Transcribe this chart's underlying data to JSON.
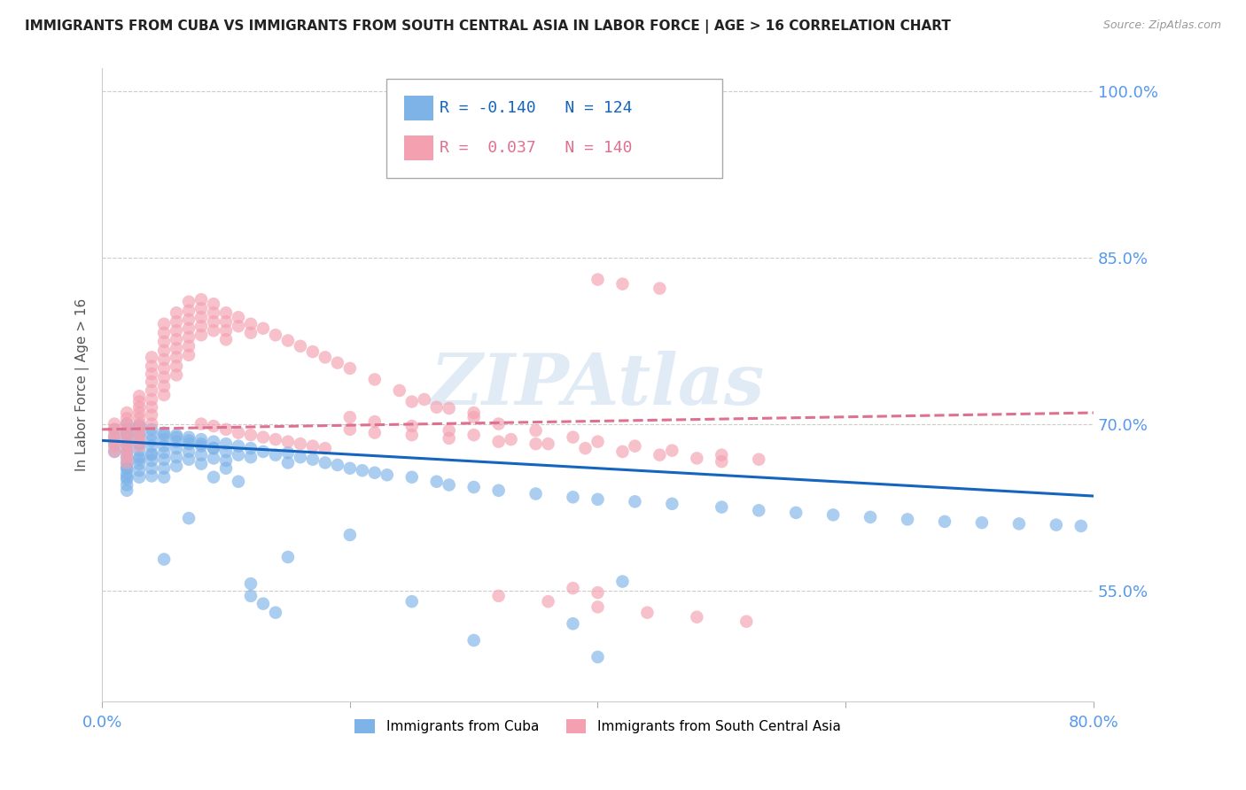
{
  "title": "IMMIGRANTS FROM CUBA VS IMMIGRANTS FROM SOUTH CENTRAL ASIA IN LABOR FORCE | AGE > 16 CORRELATION CHART",
  "source": "Source: ZipAtlas.com",
  "ylabel": "In Labor Force | Age > 16",
  "x_min": 0.0,
  "x_max": 0.8,
  "y_min": 0.45,
  "y_max": 1.02,
  "y_ticks": [
    0.55,
    0.7,
    0.85,
    1.0
  ],
  "y_tick_labels": [
    "55.0%",
    "70.0%",
    "85.0%",
    "100.0%"
  ],
  "x_ticks": [
    0.0,
    0.2,
    0.4,
    0.6,
    0.8
  ],
  "x_tick_labels": [
    "0.0%",
    "",
    "",
    "",
    "80.0%"
  ],
  "cuba_R": -0.14,
  "cuba_N": 124,
  "sca_R": 0.037,
  "sca_N": 140,
  "cuba_color": "#7EB3E8",
  "sca_color": "#F4A0B0",
  "cuba_line_color": "#1565C0",
  "sca_line_color": "#E07090",
  "watermark": "ZIPAtlas",
  "background_color": "#FFFFFF",
  "grid_color": "#CCCCCC",
  "axis_label_color": "#555555",
  "right_tick_color": "#5599EE",
  "cuba_line_start": 0.685,
  "cuba_line_end": 0.635,
  "sca_line_start": 0.695,
  "sca_line_end": 0.71,
  "cuba_scatter_x": [
    0.01,
    0.01,
    0.01,
    0.01,
    0.02,
    0.02,
    0.02,
    0.02,
    0.02,
    0.02,
    0.02,
    0.02,
    0.02,
    0.02,
    0.02,
    0.02,
    0.02,
    0.03,
    0.03,
    0.03,
    0.03,
    0.03,
    0.03,
    0.03,
    0.03,
    0.03,
    0.04,
    0.04,
    0.04,
    0.04,
    0.04,
    0.04,
    0.04,
    0.04,
    0.05,
    0.05,
    0.05,
    0.05,
    0.05,
    0.05,
    0.05,
    0.06,
    0.06,
    0.06,
    0.06,
    0.06,
    0.07,
    0.07,
    0.07,
    0.07,
    0.08,
    0.08,
    0.08,
    0.08,
    0.09,
    0.09,
    0.09,
    0.1,
    0.1,
    0.1,
    0.11,
    0.11,
    0.12,
    0.12,
    0.13,
    0.14,
    0.15,
    0.15,
    0.16,
    0.17,
    0.18,
    0.19,
    0.2,
    0.21,
    0.22,
    0.23,
    0.25,
    0.27,
    0.28,
    0.3,
    0.32,
    0.35,
    0.38,
    0.4,
    0.43,
    0.46,
    0.5,
    0.53,
    0.56,
    0.59,
    0.62,
    0.65,
    0.68,
    0.71,
    0.74,
    0.77,
    0.79,
    0.4,
    0.38,
    0.42,
    0.25,
    0.3,
    0.2,
    0.15,
    0.12,
    0.09,
    0.07,
    0.05,
    0.03,
    0.02,
    0.02,
    0.02,
    0.03,
    0.04,
    0.05,
    0.06,
    0.07,
    0.08,
    0.09,
    0.1,
    0.11,
    0.12,
    0.13,
    0.14
  ],
  "cuba_scatter_y": [
    0.695,
    0.688,
    0.682,
    0.675,
    0.7,
    0.695,
    0.69,
    0.685,
    0.68,
    0.675,
    0.67,
    0.665,
    0.66,
    0.655,
    0.65,
    0.645,
    0.64,
    0.698,
    0.692,
    0.688,
    0.682,
    0.676,
    0.67,
    0.664,
    0.658,
    0.652,
    0.695,
    0.69,
    0.685,
    0.68,
    0.673,
    0.667,
    0.66,
    0.653,
    0.692,
    0.686,
    0.68,
    0.674,
    0.668,
    0.66,
    0.652,
    0.69,
    0.684,
    0.678,
    0.67,
    0.662,
    0.688,
    0.682,
    0.675,
    0.668,
    0.686,
    0.68,
    0.672,
    0.664,
    0.684,
    0.678,
    0.669,
    0.682,
    0.675,
    0.667,
    0.68,
    0.672,
    0.678,
    0.67,
    0.675,
    0.672,
    0.674,
    0.665,
    0.67,
    0.668,
    0.665,
    0.663,
    0.66,
    0.658,
    0.656,
    0.654,
    0.652,
    0.648,
    0.645,
    0.643,
    0.64,
    0.637,
    0.634,
    0.632,
    0.63,
    0.628,
    0.625,
    0.622,
    0.62,
    0.618,
    0.616,
    0.614,
    0.612,
    0.611,
    0.61,
    0.609,
    0.608,
    0.49,
    0.52,
    0.558,
    0.54,
    0.505,
    0.6,
    0.58,
    0.556,
    0.652,
    0.615,
    0.578,
    0.698,
    0.66,
    0.692,
    0.652,
    0.668,
    0.672,
    0.69,
    0.688,
    0.685,
    0.682,
    0.678,
    0.66,
    0.648,
    0.545,
    0.538,
    0.53
  ],
  "sca_scatter_x": [
    0.01,
    0.01,
    0.01,
    0.01,
    0.01,
    0.01,
    0.02,
    0.02,
    0.02,
    0.02,
    0.02,
    0.02,
    0.02,
    0.02,
    0.02,
    0.02,
    0.03,
    0.03,
    0.03,
    0.03,
    0.03,
    0.03,
    0.03,
    0.03,
    0.03,
    0.03,
    0.04,
    0.04,
    0.04,
    0.04,
    0.04,
    0.04,
    0.04,
    0.04,
    0.04,
    0.05,
    0.05,
    0.05,
    0.05,
    0.05,
    0.05,
    0.05,
    0.05,
    0.05,
    0.06,
    0.06,
    0.06,
    0.06,
    0.06,
    0.06,
    0.06,
    0.06,
    0.07,
    0.07,
    0.07,
    0.07,
    0.07,
    0.07,
    0.07,
    0.08,
    0.08,
    0.08,
    0.08,
    0.08,
    0.09,
    0.09,
    0.09,
    0.09,
    0.1,
    0.1,
    0.1,
    0.1,
    0.11,
    0.11,
    0.12,
    0.12,
    0.13,
    0.14,
    0.15,
    0.16,
    0.17,
    0.18,
    0.19,
    0.2,
    0.22,
    0.24,
    0.26,
    0.28,
    0.3,
    0.32,
    0.35,
    0.38,
    0.4,
    0.43,
    0.46,
    0.5,
    0.53,
    0.25,
    0.27,
    0.3,
    0.08,
    0.09,
    0.1,
    0.11,
    0.12,
    0.13,
    0.14,
    0.15,
    0.16,
    0.17,
    0.18,
    0.2,
    0.22,
    0.25,
    0.28,
    0.3,
    0.33,
    0.36,
    0.39,
    0.42,
    0.45,
    0.48,
    0.5,
    0.32,
    0.36,
    0.4,
    0.44,
    0.48,
    0.52,
    0.2,
    0.22,
    0.25,
    0.28,
    0.32,
    0.35,
    0.4,
    0.42,
    0.45,
    0.38,
    0.4
  ],
  "sca_scatter_y": [
    0.7,
    0.695,
    0.69,
    0.685,
    0.68,
    0.675,
    0.71,
    0.705,
    0.7,
    0.695,
    0.69,
    0.685,
    0.68,
    0.675,
    0.67,
    0.665,
    0.725,
    0.72,
    0.715,
    0.71,
    0.705,
    0.7,
    0.695,
    0.69,
    0.685,
    0.68,
    0.76,
    0.752,
    0.745,
    0.738,
    0.73,
    0.722,
    0.715,
    0.708,
    0.7,
    0.79,
    0.782,
    0.774,
    0.766,
    0.758,
    0.75,
    0.742,
    0.734,
    0.726,
    0.8,
    0.792,
    0.784,
    0.776,
    0.768,
    0.76,
    0.752,
    0.744,
    0.81,
    0.802,
    0.794,
    0.786,
    0.778,
    0.77,
    0.762,
    0.812,
    0.804,
    0.796,
    0.788,
    0.78,
    0.808,
    0.8,
    0.792,
    0.784,
    0.8,
    0.792,
    0.784,
    0.776,
    0.796,
    0.788,
    0.79,
    0.782,
    0.786,
    0.78,
    0.775,
    0.77,
    0.765,
    0.76,
    0.755,
    0.75,
    0.74,
    0.73,
    0.722,
    0.714,
    0.706,
    0.7,
    0.694,
    0.688,
    0.684,
    0.68,
    0.676,
    0.672,
    0.668,
    0.72,
    0.715,
    0.71,
    0.7,
    0.698,
    0.695,
    0.692,
    0.69,
    0.688,
    0.686,
    0.684,
    0.682,
    0.68,
    0.678,
    0.706,
    0.702,
    0.698,
    0.694,
    0.69,
    0.686,
    0.682,
    0.678,
    0.675,
    0.672,
    0.669,
    0.666,
    0.545,
    0.54,
    0.535,
    0.53,
    0.526,
    0.522,
    0.695,
    0.692,
    0.69,
    0.687,
    0.684,
    0.682,
    0.83,
    0.826,
    0.822,
    0.552,
    0.548
  ]
}
